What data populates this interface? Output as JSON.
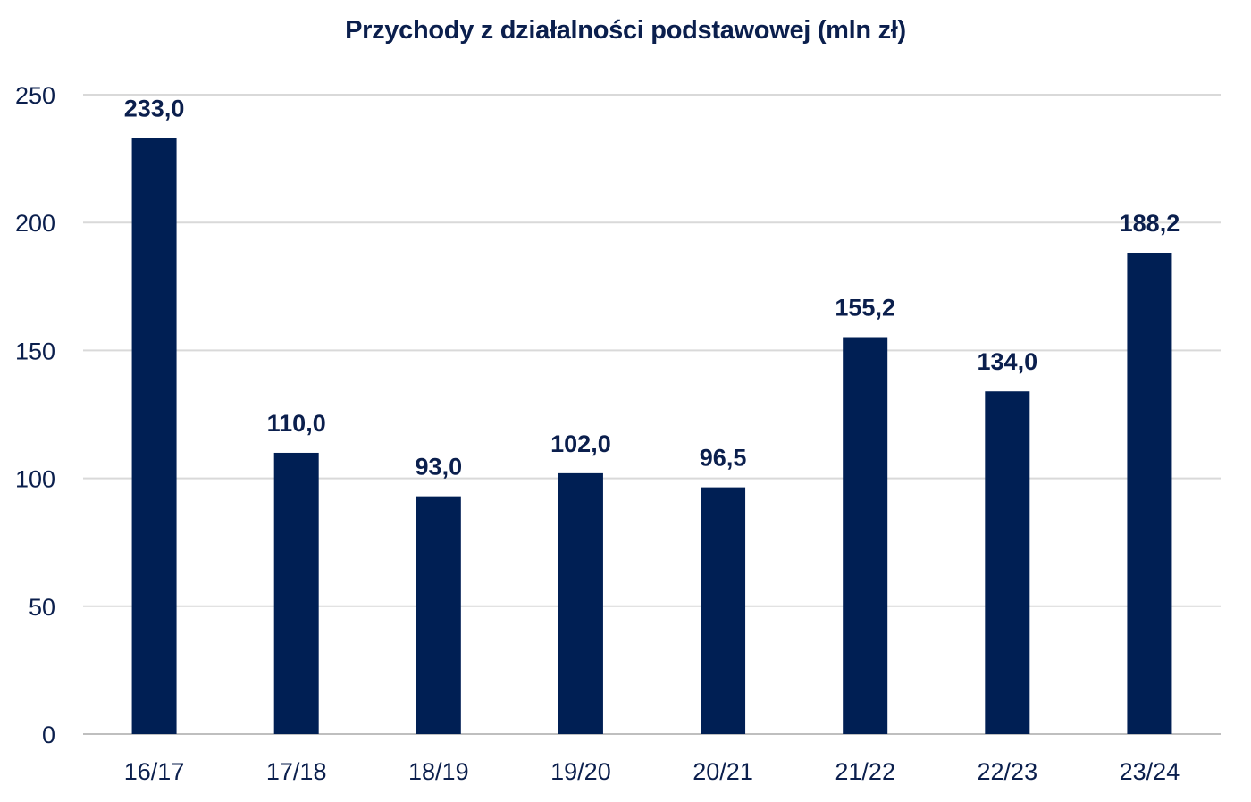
{
  "chart_data": {
    "type": "bar",
    "title": "Przychody z działalności podstawowej (mln zł)",
    "xlabel": "",
    "ylabel": "",
    "categories": [
      "16/17",
      "17/18",
      "18/19",
      "19/20",
      "20/21",
      "21/22",
      "22/23",
      "23/24"
    ],
    "values": [
      233.0,
      110.0,
      93.0,
      102.0,
      96.5,
      155.2,
      134.0,
      188.2
    ],
    "data_labels": [
      "233,0",
      "110,0",
      "93,0",
      "102,0",
      "96,5",
      "155,2",
      "134,0",
      "188,2"
    ],
    "ylim": [
      0,
      250
    ],
    "yticks": [
      0,
      50,
      100,
      150,
      200,
      250
    ],
    "grid": true,
    "legend": "none",
    "colors": {
      "bar": "#001f54",
      "text": "#0b1f4d",
      "grid": "#d9d9d9",
      "axis": "#bfbfbf"
    }
  }
}
